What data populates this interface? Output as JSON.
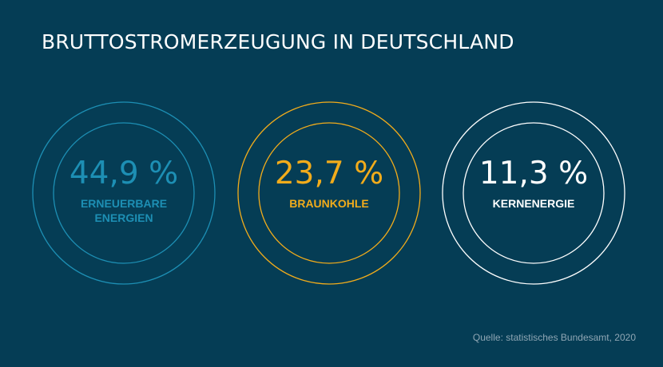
{
  "chart_data": {
    "type": "pie",
    "title": "BRUTTOSTROMERZEUGUNG IN DEUTSCHLAND",
    "unit": "%",
    "series": [
      {
        "name": "ERNEUERBARE ENERGIEN",
        "lines": [
          "ERNEUERBARE",
          "ENERGIEN"
        ],
        "value": 44.9,
        "value_label": "44,9 %",
        "color": "#1d8fb4"
      },
      {
        "name": "BRAUNKOHLE",
        "lines": [
          "BRAUNKOHLE"
        ],
        "value": 23.7,
        "value_label": "23,7 %",
        "color": "#f2ac1b"
      },
      {
        "name": "KERNENERGIE",
        "lines": [
          "KERNENERGIE"
        ],
        "value": 11.3,
        "value_label": "11,3 %",
        "color": "#ffffff"
      }
    ],
    "source": "Quelle: statistisches Bundesamt, 2020"
  }
}
